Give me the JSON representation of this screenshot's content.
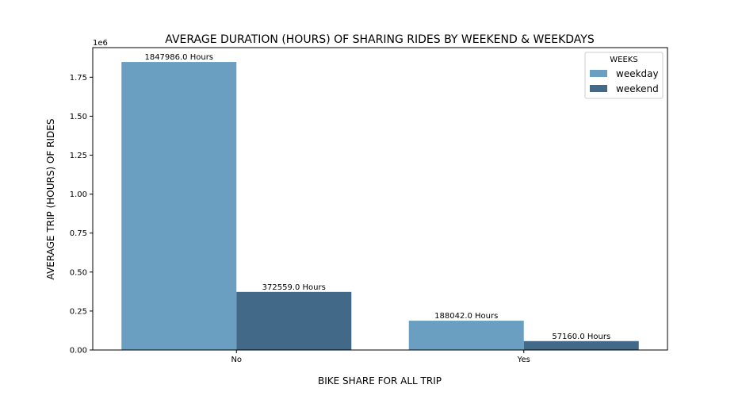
{
  "chart_data": {
    "type": "bar",
    "title": "AVERAGE DURATION (HOURS) OF SHARING RIDES BY WEEKEND & WEEKDAYS",
    "xlabel": "BIKE SHARE FOR ALL TRIP",
    "ylabel": "AVERAGE TRIP (HOURS) OF RIDES",
    "y_offset_text": "1e6",
    "categories": [
      "No",
      "Yes"
    ],
    "ylim": [
      0,
      1940000
    ],
    "yticks": [
      0,
      250000,
      500000,
      750000,
      1000000,
      1250000,
      1500000,
      1750000
    ],
    "ytick_labels": [
      "0.00",
      "0.25",
      "0.50",
      "0.75",
      "1.00",
      "1.25",
      "1.50",
      "1.75"
    ],
    "legend_title": "WEEKS",
    "legend_position": "top-right",
    "grid": false,
    "series": [
      {
        "name": "weekday",
        "color": "#6a9fc2",
        "values": [
          1847986.0,
          188042.0
        ],
        "labels": [
          "1847986.0 Hours",
          "188042.0 Hours"
        ]
      },
      {
        "name": "weekend",
        "color": "#426987",
        "values": [
          372559.0,
          57160.0
        ],
        "labels": [
          "372559.0 Hours",
          "57160.0 Hours"
        ]
      }
    ]
  }
}
